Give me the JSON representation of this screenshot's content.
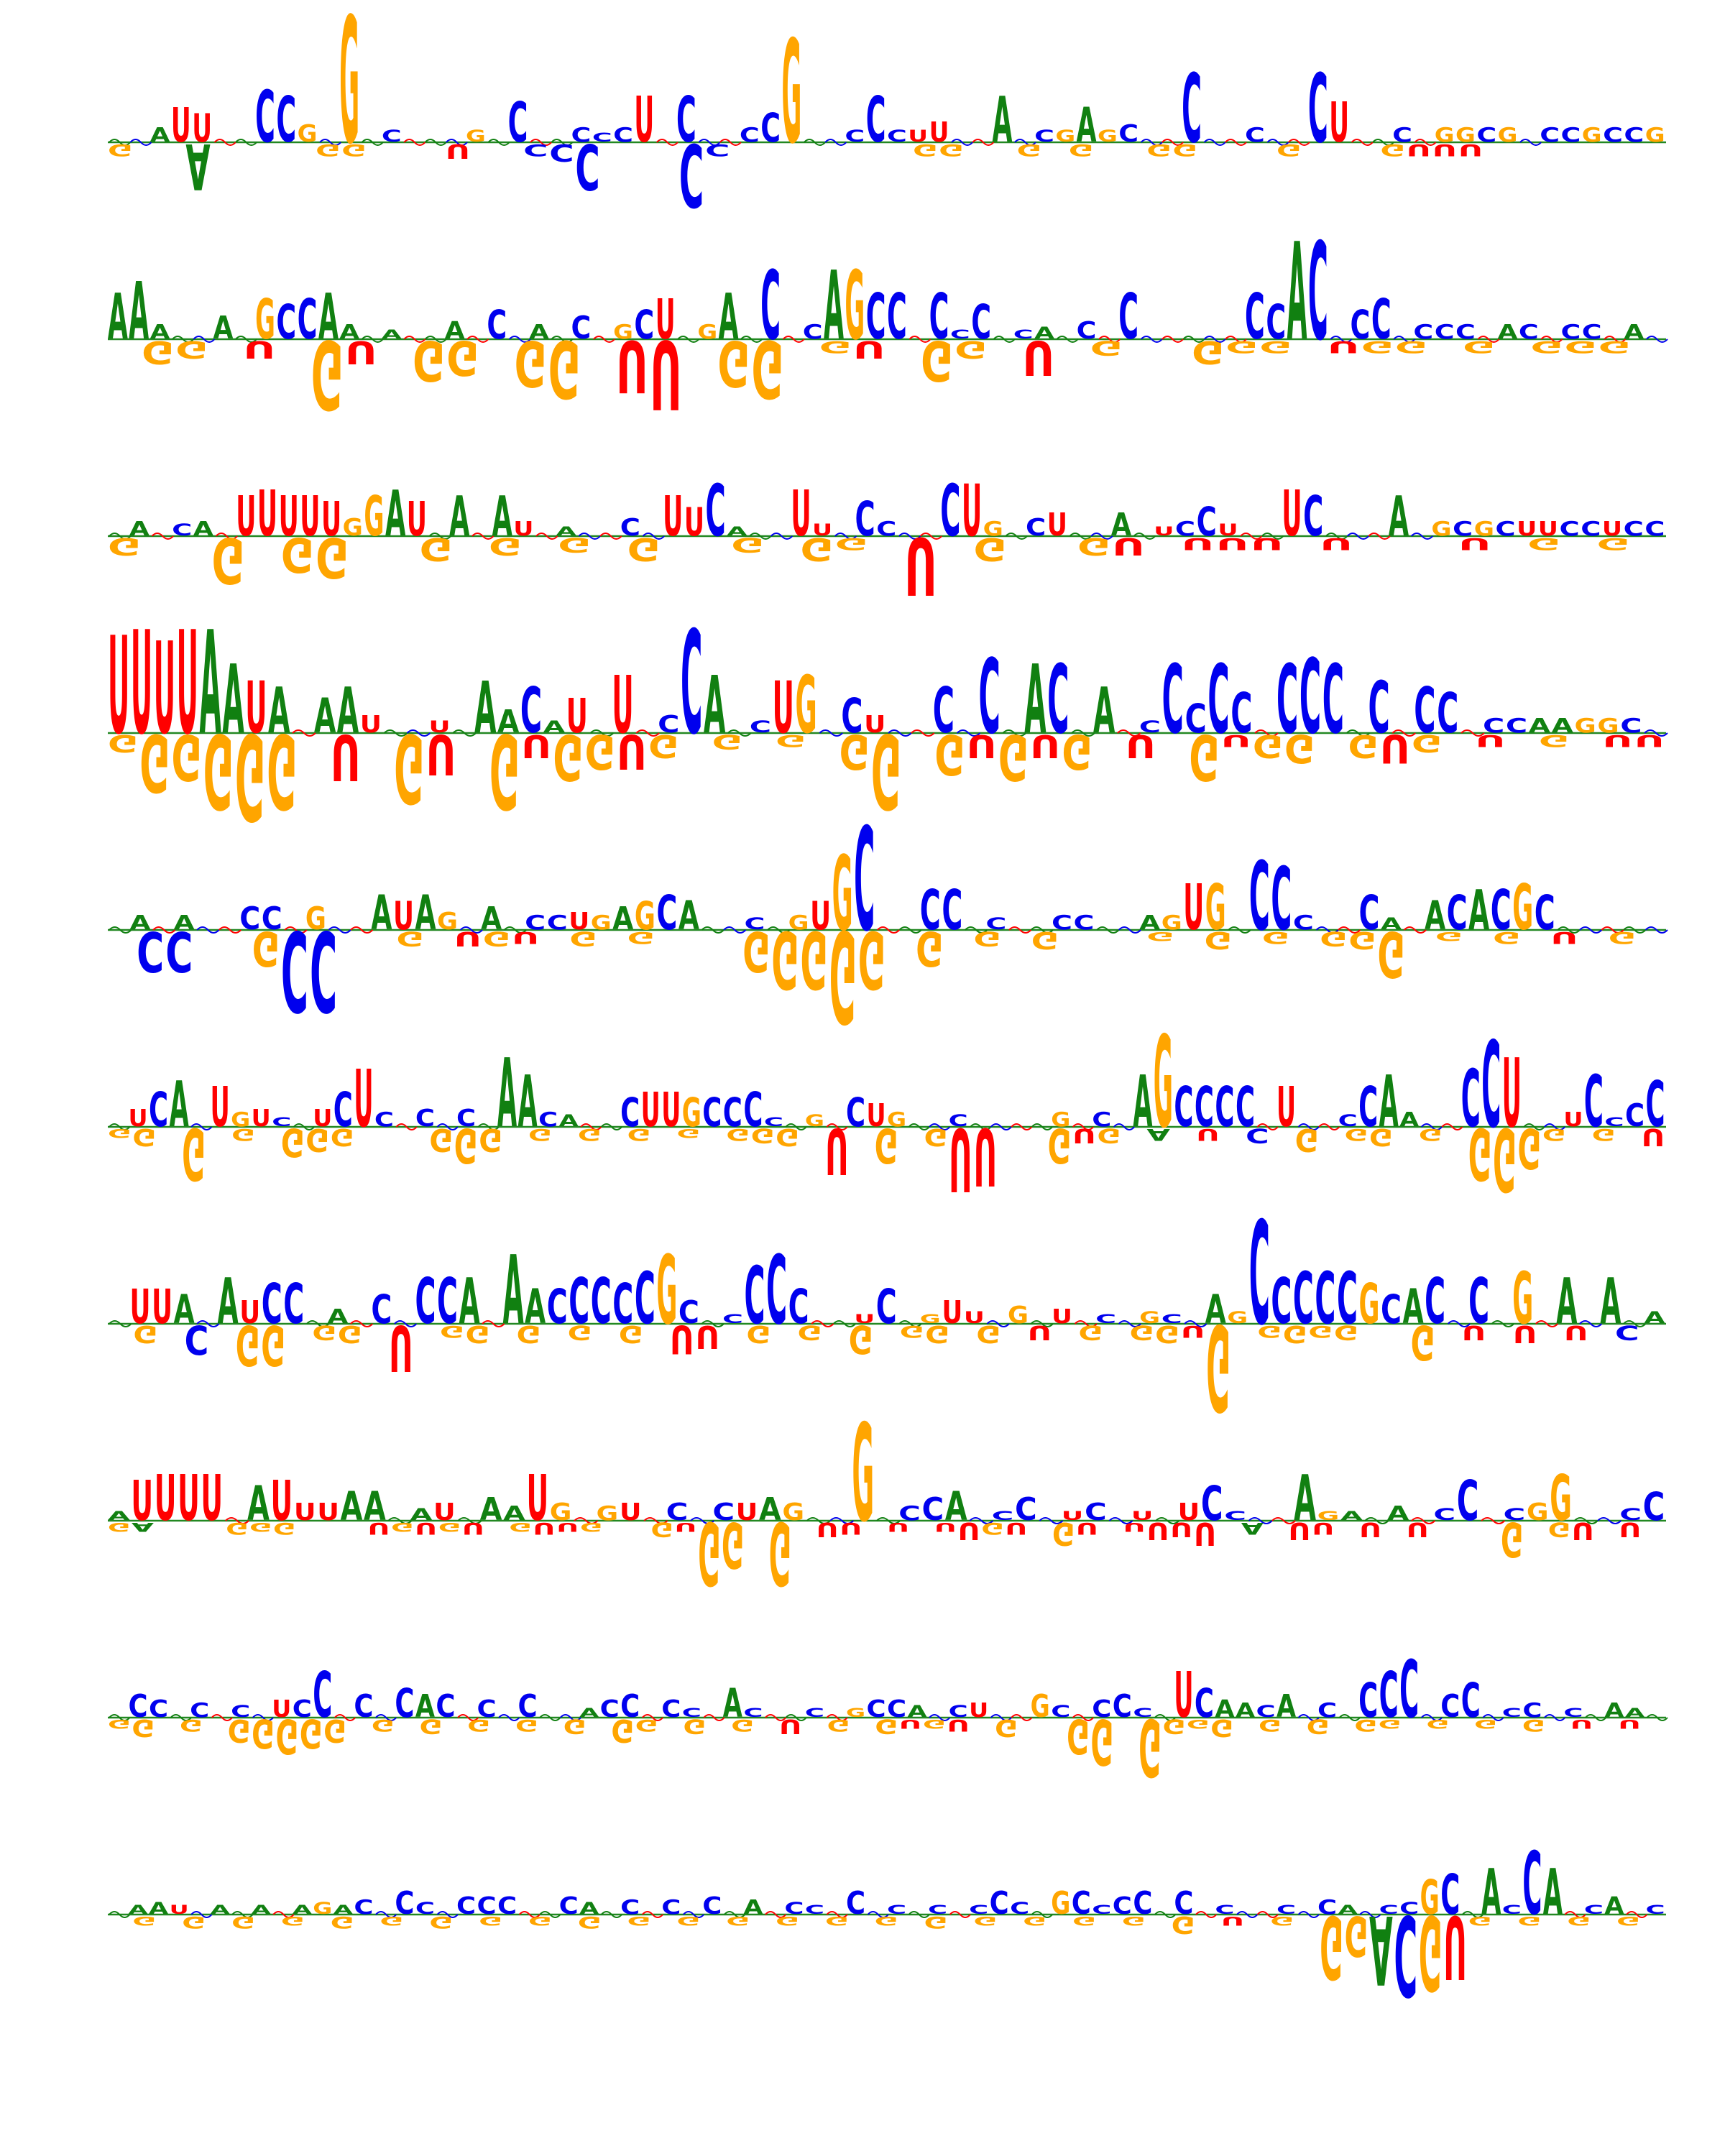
{
  "chart_data": {
    "type": "sequence_logo",
    "title": "",
    "xlabel": "",
    "ylabel": "",
    "grid": false,
    "legend": "none",
    "alphabet": [
      "A",
      "C",
      "G",
      "U"
    ],
    "colors": {
      "A": "#118011",
      "C": "#0000ee",
      "G": "#ffa500",
      "U": "#ff0000",
      "baseline": "#228822"
    },
    "rows": [
      {
        "up": [
          "--AUU--CCG-G-C---G-C--CCCU-C--CCG--CCCUU--A-CGAGC--C--C--CU--C-GGCG-CCGCCG",
          "0.6 0.8 0.5 1.2 1.0 0.4 0.3 1.8 1.6 0.6 1.2 4.4 0.6 0.4 0.8 0.5 1.6 0.4 0.3 1.4 1.6 0.4 0.5 0.3 0.5 1.6 1.8 1.6 1.6 1.6 0.5 1.0 3.6 2.0 1.6 0.4 1.6 0.4 0.4 0.7 0.4 0.3 1.6 0.6 0.4 0.4 1.2 0.4 0.6 1.6 2.4 2.4 1.8 1.4 0.5 1.8 3.0 2.4 1.4 1.0",
          [
            0.05,
            0.06,
            0.05,
            0.04,
            0.05
          ]
        ],
        "down": [
          "G--A----GG---U--CCC---CC-------GG--G-G--GG---G---GUUU-------",
          "0.4 0.6 0.8 1.6 0.4 0.5 2.8 0.6 0.4 0.4 1.8 1.6 1.6 0.5 0.6 1.2 0.4 0.6 1.6 0.5 1.6 2.2 2.2 0.4 0.4 0.5 0.4 0.4 1.6 0.6",
          [
            0.3,
            0.5,
            0.6
          ]
        ]
      },
      {
        "up": [
          "AAA--A-GCCAA-A--A-C-A-C-GCU-GA-C-CAGCC-CCC-CA-C-C-----CCAC-CC-CCC-AC-CC-A-",
          "1.6 2.0 0.5 0.4 1.0 0.8 0.6 1.4 1.2 1.4 1.6 0.5 1.4 0.3 1.6 0.4 0.6 2.8 1.0 1.0 0.5 1.8 0.8 0.6 0.5 1.0 1.4 2.0 0.5 1.6 2.4 2.4 2.4 0.5 2.4 2.4 1.6 1.6 0.5 1.6 0.3 1.2 0.8 0.3 0.4 0.4 0.6 0.8 1.6 1.2 1.0 3.6 0.5 3.0 1.6 1.2 3.4 3.4 0.8 1.0 1.4",
          [
            0.05,
            0.04,
            0.06,
            0.05
          ]
        ],
        "down": [
          "-GG-U-GU-GG-GG-UU-GG-GU-GG-U-G--GGG-UGG-G-GGG-",
          "0.4 0.8 0.6 0.5 0.6 0.8 2.4 0.8 0.6 1.4 1.2 0.5 1.6 2.0 0.6 1.8 2.4 0.4 1.6 2.0 0.6 0.4 0.6 1.6 1.4 0.6 0.4 1.2 1.6 0.5 2.4 1.2 0.8",
          [
            0.3,
            0.4,
            0.5,
            0.6
          ]
        ]
      },
      {
        "up": [
          "-A-CA-UUUUUGGAU-A-AU-A--C-UUCA--UU-CC--CUG-CU--A-UCCU--UC---A-GCGCUUCCUCC",
          "0.3 0.5 0.3 0.4 0.5 0.3 1.4 1.6 1.4 1.4 1.2 0.6 1.4 1.6 1.2 0.5 1.4 0.3 1.4 0.5 0.6 0.3 1.0 0.5 0.6 1.2 1.4 1.0 1.8 0.3 0.4 1.4 1.6 0.4 1.2 1.2 0.5 3.6 1.4 1.8 1.8 0.5 0.4 0.6 0.8 0.8 0.6 0.8 0.4 0.3 0.5 1.0 0.4 1.0 1.8 1.6 1.4 2.0 1.2 1.8 1.4",
          [
            0.05,
            0.06,
            0.05
          ]
        ],
        "down": [
          "G--G-GG--G-G-G-G--G-GG-U-G--GU-UUU-U---U-G-G-",
          "0.6 0.4 0.4 1.6 0.4 1.2 1.4 0.5 0.4 0.8 0.4 0.6 2.4 0.5 3.6 0.8 0.4 1.4 0.5 0.6 0.8 0.4 1.8 2.0 0.6 0.8 0.4 1.0 0.6 0.6",
          [
            0.3,
            0.5,
            0.7,
            0.5
          ]
        ]
      },
      {
        "up": [
          "UUUUAAUA-AAU--U-AACAU-U-CCA-CUG-CU--C-C-AC-A-CCCCC-CCC-C-CC-CCAAGGC-",
          "3.4 3.6 3.2 3.6 3.6 2.4 1.8 1.6 0.5 1.2 1.6 0.6 0.5 1.2 0.4 3.0 1.8 0.8 1.6 0.4 1.2 0.5 2.0 2.0 0.6 3.6 2.0 1.8 0.4 1.8 2.0 0.5 1.2 0.6 1.0 0.4 1.6 1.6 2.6 0.5 2.4 2.4 2.0 1.6 1.6 0.4 2.4 1.0 2.4 1.4 0.6 2.4 2.6 2.4 0.5 1.8 1.4 1.6 1.4 1.6",
          [
            0.06,
            0.06,
            0.05
          ]
        ],
        "down": [
          "GGGGGG-U-GU-GUGGUG-G-G-GG-GUGUG-U-GUGG-GUG-U-G-UU",
          "0.6 2.0 1.6 2.6 3.0 2.6 0.4 1.6 0.5 2.4 1.4 0.6 2.6 0.8 1.6 1.2 1.2 0.8 0.6 0.5 0.8 0.4 0.6 1.2 2.6 1.2 1.4 0.8 1.6 0.8 1.2 0.6 0.8 0.5 1.6 0.4 0.8 1.0 0.6 0.8 1.0 0.6",
          [
            0.3,
            0.4,
            0.6
          ]
        ]
      },
      {
        "up": [
          "-A-A--CC-G--AUAG-A-CCUGAGCA--C-GUGC--CC-C--CC--AGUG-CCC--CA-ACACGC-----",
          "0.4 0.5 0.4 0.5 0.3 0.3 0.8 0.8 0.3 0.8 0.4 0.3 1.2 1.0 1.2 0.6 0.4 0.8 0.4 0.5 0.5 0.6 0.5 0.8 1.0 1.2 1.0 1.4 0.3 0.4 1.6 0.5 1.0 2.6 3.6 0.3 0.4 1.4 1.4 1.2 0.4 1.2 1.2 0.5 0.5 0.4 1.2 0.5 0.5 1.6 1.6 2.2 2.4 2.2 0.5 0.3 1.4 1.2 0.4 1.0 1.0 1.2 1.4 1.4 1.6 1.2 0.3 0.3 0.3 0.3",
          [
            0.06,
            0.05
          ]
        ],
        "down": [
          "-CC--GCC--G-UGU-G-G---GGGGG-G-G-G---G-G-G-GGG-G-G-U-G-",
          "0.4 1.4 1.4 0.5 0.5 1.2 2.8 2.8 0.4 0.5 0.5 0.4 0.5 0.5 0.4 0.6 0.5 0.6 0.4 0.6 0.5 0.6 1.4 2.0 2.0 3.2 2.0 0.6 1.2 0.4 0.5 0.3 0.6 0.6 0.4 0.5 0.3 0.6 0.6 0.5 0.4 0.6 0.5 0.6 1.6 0.8 0.3 0.6 0.4 0.6 0.4 0.5 0.4 0.6",
          [
            0.3,
            0.6,
            0.4
          ]
        ]
      },
      {
        "up": [
          "-UCA-UGUC-UCUC-C-C-AACA--CUUGCCCC-G-CUG--C----G-C-AGCCCC-U--CCAA--CCU--UCCCC",
          "0.3 0.6 1.2 1.6 0.4 1.4 0.5 0.6 0.3 0.4 0.6 1.2 2.0 0.5 0.3 0.6 0.4 0.6 1.6 2.4 1.8 0.5 0.4 0.6 0.8 1.0 1.2 1.2 1.0 1.0 1.0 1.2 0.3 1.0 0.4 0.6 1.0 0.8 0.5 0.3 0.8 0.4 0.3 0.3 0.3 0.6 0.5 1.6 0.5 0.4 1.8 3.2 1.4 1.4 1.4 1.4 0.3 1.4 0.5 0.5 0.4 1.4 1.8 0.5 0.4 0.4 2.0 3.0 2.4 0.4 0.6 0.5 1.8 0.3 0.8 1.6",
          [
            0.05,
            0.06
          ]
        ],
        "down": [
          "GG-G-G-GGG---GGG-G-G-G-G-GGG-U-G-GUU--GUG-A-U-C-G-GG-G-GGGG-G-U",
          "0.3 0.6 0.4 1.8 0.3 0.4 0.5 1.0 0.8 0.6 0.3 0.3 0.4 0.8 1.2 0.8 0.5 0.4 0.6 0.4 0.5 0.4 0.6 0.3 0.5 0.4 0.5 0.6 0.4 1.6 0.6 1.2 0.6 0.6 2.2 2.0 0.4 0.4 1.2 0.5 0.5 0.4 0.4 0.5 0.4 0.4 0.5 1.0 0.8 0.5 0.4 0.6 0.4 0.4 1.4 1.8 2.2 1.4 0.4 0.6 0.4 0.4 0.6 0.5 0.4",
          [
            0.3,
            0.5,
            0.6
          ]
        ]
      },
      {
        "up": [
          "-UUA-AUCC-A-C-CCA-AACCCCCGC-CCCC--UC-GUU-G-U-C-GC-AGCCCCCGCAC-C-G-A-A-A",
          "0.4 1.2 1.2 1.0 0.5 1.6 0.8 1.4 1.4 0.5 0.5 0.4 1.0 0.3 1.6 1.6 1.6 0.4 2.4 1.2 1.2 1.6 1.6 1.4 1.8 2.4 0.8 0.6 0.3 2.0 2.4 1.2 0.8 0.3 0.3 1.2 0.8 0.3 0.8 0.4 0.6 0.6 0.3 0.5 0.8 0.3 1.2 0.4 0.3 1.4 1.0 0.4 3.6 1.6 1.8 1.8 1.8 1.4 1.0 1.2 1.6 1.0 1.6 0.5 1.8 0.4 1.6 0.4 1.6 0.5 0.4 0.6",
          [
            0.04,
            0.06
          ]
        ],
        "down": [
          "-G-C-GG-GG-U-GG-G-G-G-UU-G-G-G-GG-G-U-G-GGUG-GGGG--G-U-U-U-C-",
          "0.4 0.6 0.4 1.0 0.5 1.4 1.4 0.4 0.5 0.6 0.5 1.6 0.5 0.4 0.6 0.4 0.6 0.4 0.5 0.4 0.6 0.5 1.0 0.8 0.4 0.6 0.4 0.5 0.4 1.0 0.6 0.4 0.6 0.4 0.6 1.2 0.5 0.6 0.5 0.5 0.5 0.6 0.4 3.0 0.6 0.4 0.6 0.4 0.5 0.5 0.6 1.2 0.6 0.5 0.4 0.6 0.4 0.5 1.6 0.5",
          [
            0.3,
            0.5,
            0.7
          ]
        ]
      },
      {
        "up": [
          "AUUUU-AUUUAA-AU-AAUG-GU-C-CUAG--G-CCA-CC-UC-U-UCC--AGA-A-CC-CGG--CC",
          "0.3 1.4 1.6 1.6 1.6 0.3 1.2 1.4 0.6 0.6 1.0 1.0 0.3 0.4 0.6 0.5 0.8 0.5 1.6 0.6 0.4 0.5 0.6 0.3 0.6 0.3 0.6 0.6 0.8 0.6 0.4 0.3 3.4 0.4 0.5 0.8 1.0 0.6 0.3 0.8 0.5 0.3 0.6 0.5 0.3 0.4 0.6 1.2 0.3 0.4 1.8 1.6 0.3 0.3 0.4 0.5 0.3 0.4 1.4 0.3 0.4 0.6 1.6 2.4 1.2 0.4 1.0 1.6 1.4",
          [
            0.05,
            0.06
          ]
        ],
        "down": [
          "GA---GGG---UGUGU-GUUG--GUGG-G-UU-U-UUGU-GU-UUUU-A-UU-U-U---G-GU-U-",
          "0.3 0.3 0.3 0.4 0.3 0.4 0.3 0.4 0.3 0.5 0.3 0.4 0.3 0.4 0.3 0.4 0.3 0.3 0.4 0.3 0.3 0.4 0.4 0.5 0.3 2.2 1.6 1.0 2.2 0.4 0.5 0.4 0.6 0.3 0.4 0.3 0.6 0.4 0.4 0.6 0.8 0.4 1.0 0.3 0.6 0.5 0.8 0.5 0.4 1.2 0.6 0.4 0.6 0.5 0.3 0.5 2.6 0.4 0.6 1.2 0.4 0.5 0.6 0.4 0.5 0.5",
          [
            0.3,
            0.5,
            0.4
          ]
        ]
      },
      {
        "up": [
          "-CC-C-C-UCC-C-CAC-C-C--ACC-CC-AC--C-GCCA-CU--GC-CCC-UCAACA-C-CCC-CC-CC-C-AA-",
          "0.3 0.8 0.6 0.3 0.5 0.3 0.4 0.4 0.6 0.6 1.6 0.4 0.8 0.3 1.0 0.8 0.8 0.4 0.6 0.3 0.8 0.4 0.5 0.3 0.6 0.8 1.4 0.6 0.3 1.0 1.0 0.3 0.8 0.4 0.3 0.4 0.3 0.6 0.6 0.4 0.6 0.4 0.5 0.3 0.3 0.8 0.4 1.0 0.6 0.8 0.3 2.4 1.6 1.0 0.6 0.5 0.4 0.8 0.4 0.5 0.6 1.2 1.6 2.0 0.3 0.8 1.2 0.6 0.3 0.5 0.6 0.3 0.4 0.5 0.3 0.4 0.3",
          [
            0.05,
            0.06,
            0.05
          ]
        ],
        "down": [
          "GG-G-GGGGG-G-G-G-G-G-GG-G-G-U-G-GUGU-G--GG-GGGG-G-G-GG-G-G-G-U-U-",
          "0.3 0.6 0.3 0.4 0.3 0.8 1.0 1.2 1.0 0.8 0.3 0.4 0.3 0.5 0.3 0.4 0.3 0.4 0.3 0.5 0.3 0.8 0.4 0.3 0.5 0.3 0.4 0.3 0.5 0.3 0.4 0.3 0.5 0.3 0.3 0.4 0.5 0.6 0.4 0.4 1.2 1.6 1.8 2.0 0.5 0.3 0.6 0.3 0.4 0.3 0.5 0.3 0.4 0.3 0.6 0.3 0.4 0.3 0.3 0.4 0.3 0.3 0.4 0.3",
          [
            0.3,
            0.5,
            0.6
          ]
        ]
      },
      {
        "up": [
          "-AAU-A-A-AGAC-CC-CCC--CA-C-C-C-A-CC-C-C-C-CCC-GCCCC-C-C--C-CA-CCGC-ACCA-CA-C",
          "0.3 0.3 0.4 0.3 0.3 0.3 0.3 0.3 0.3 0.3 0.4 0.3 0.5 0.3 0.8 0.4 0.3 0.6 0.6 0.6 0.3 0.3 0.6 0.4 0.3 0.5 0.3 0.5 0.3 0.6 0.3 0.5 0.3 0.4 0.3 0.8 0.8 0.3 0.3 0.5 0.3 0.6 0.3 0.8 0.4 0.8 0.8 0.8 0.3 0.6 0.8 0.8 0.8 0.8 0.3 0.3 0.3 0.3 0.3 0.5 0.3 0.5 0.3 0.4 1.2 1.4 2.2 1.6 0.3 2.2 1.6 1.2 0.3 0.6 0.4 0.3 0.5",
          [
            0.05,
            0.04
          ]
        ],
        "down": [
          "-G-G-G-G-G-G-G-G-G-G-G-G-G-G-G-G-G-G-G-G-G-G-U-G-GGACGUG-G-G-G-",
          "0.3 0.3 0.3 0.4 0.3 0.4 0.3 0.3 0.3 0.4 0.3 0.3 0.3 0.4 0.3 0.3 0.3 0.3 0.3 0.4 0.3 0.3 0.3 0.3 0.3 0.3 0.3 0.3 0.3 0.3 0.3 0.3 0.3 0.4 0.3 0.3 0.3 0.3 0.3 0.3 0.3 0.3 0.3 0.6 0.4 0.3 0.3 0.3 0.4 2.2 1.4 2.4 2.8 2.6 2.2 0.3 0.4 0.3 0.3 0.3 0.3 0.3 0.3 0.3",
          [
            0.3,
            0.5
          ]
        ]
      }
    ]
  }
}
